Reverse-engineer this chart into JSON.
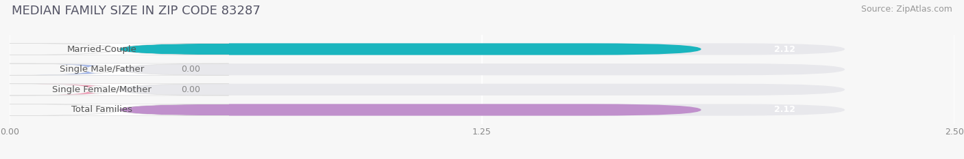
{
  "title": "MEDIAN FAMILY SIZE IN ZIP CODE 83287",
  "source": "Source: ZipAtlas.com",
  "categories": [
    "Married-Couple",
    "Single Male/Father",
    "Single Female/Mother",
    "Total Families"
  ],
  "values": [
    2.12,
    0.0,
    0.0,
    2.12
  ],
  "bar_colors": [
    "#1ab5be",
    "#a0b4e8",
    "#f0a0b8",
    "#c090cc"
  ],
  "xlim": [
    0,
    2.5
  ],
  "xticks": [
    0.0,
    1.25,
    2.5
  ],
  "xtick_labels": [
    "0.00",
    "1.25",
    "2.50"
  ],
  "bar_height": 0.58,
  "title_fontsize": 13,
  "source_fontsize": 9,
  "label_fontsize": 9.5,
  "value_fontsize": 9,
  "tick_fontsize": 9,
  "background_color": "#f7f7f7",
  "bar_bg_color": "#e8e8ec",
  "grid_color": "#ffffff",
  "label_box_color": "#ffffff",
  "label_text_color": "#555555",
  "value_text_color_inside": "#ffffff",
  "value_text_color_outside": "#888888",
  "title_color": "#555566",
  "source_color": "#999999"
}
